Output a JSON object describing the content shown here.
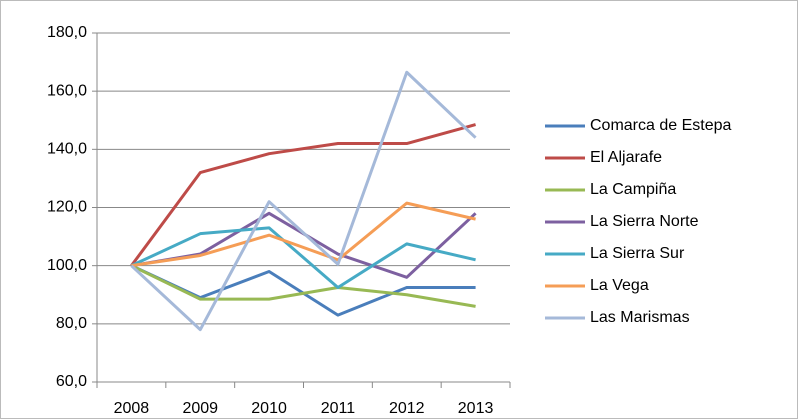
{
  "chart_data": {
    "type": "line",
    "categories": [
      "2008",
      "2009",
      "2010",
      "2011",
      "2012",
      "2013"
    ],
    "ylim": [
      60,
      180
    ],
    "yticks": [
      {
        "value": 60,
        "label": "60,0"
      },
      {
        "value": 80,
        "label": "80,0"
      },
      {
        "value": 100,
        "label": "100,0"
      },
      {
        "value": 120,
        "label": "120,0"
      },
      {
        "value": 140,
        "label": "140,0"
      },
      {
        "value": 160,
        "label": "160,0"
      },
      {
        "value": 180,
        "label": "180,0"
      }
    ],
    "grid": true,
    "legend": "right",
    "series": [
      {
        "name": "Comarca de Estepa",
        "color": "#4a7ebb",
        "values": [
          100,
          89,
          98,
          83,
          92.5,
          92.5
        ]
      },
      {
        "name": "El Aljarafe",
        "color": "#be4b48",
        "values": [
          100,
          132,
          138.5,
          142,
          142,
          148.5
        ]
      },
      {
        "name": "La Campiña",
        "color": "#98b954",
        "values": [
          100,
          88.5,
          88.5,
          92.5,
          90,
          86
        ]
      },
      {
        "name": "La Sierra Norte",
        "color": "#7d60a0",
        "values": [
          100,
          104,
          118,
          104,
          96,
          118
        ]
      },
      {
        "name": "La Sierra Sur",
        "color": "#46aac5",
        "values": [
          100,
          111,
          113,
          92.5,
          107.5,
          102
        ]
      },
      {
        "name": "La Vega",
        "color": "#f59d56",
        "values": [
          100,
          103.5,
          110.5,
          102,
          121.5,
          116
        ]
      },
      {
        "name": "Las Marismas",
        "color": "#a5b9d9",
        "values": [
          100,
          78,
          122,
          100.5,
          166.5,
          144
        ]
      }
    ]
  }
}
